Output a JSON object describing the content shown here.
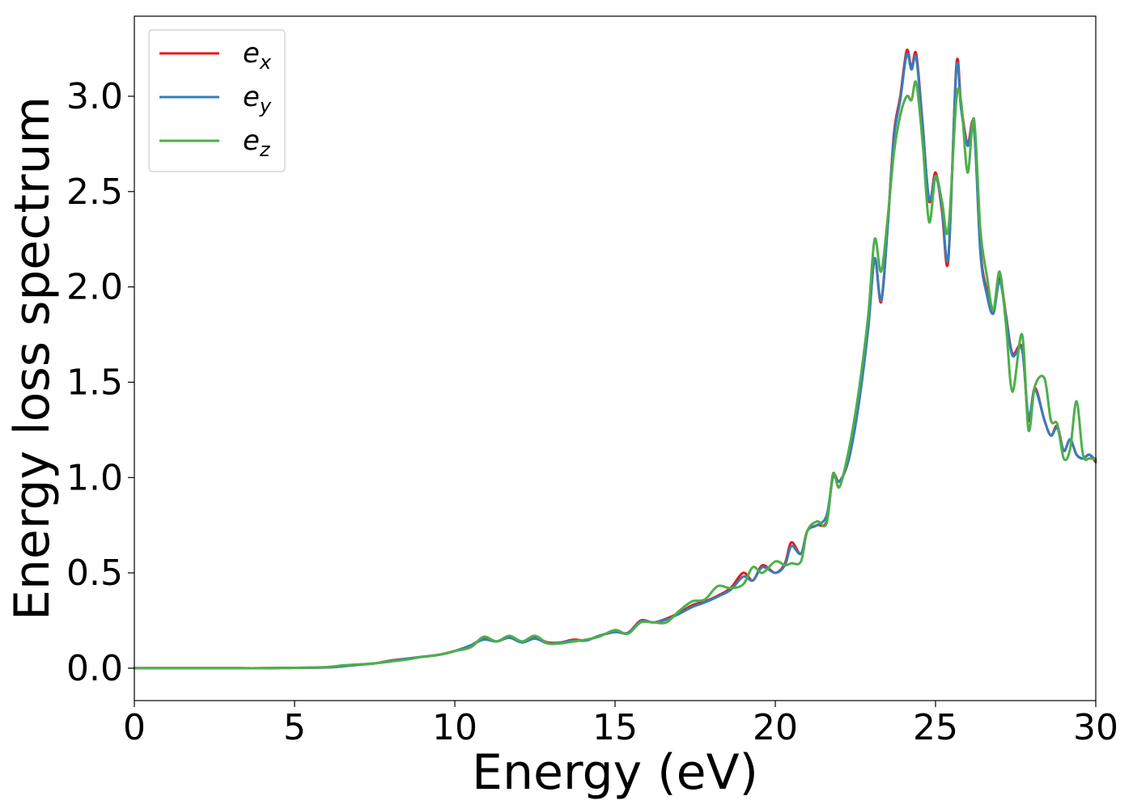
{
  "chart_data": {
    "type": "line",
    "title": "",
    "xlabel": "Energy (eV)",
    "ylabel": "Energy loss spectrum",
    "xlim": [
      0,
      30
    ],
    "ylim": [
      -0.17,
      3.42
    ],
    "xticks": [
      0,
      5,
      10,
      15,
      20,
      25,
      30
    ],
    "xtick_labels": [
      "0",
      "5",
      "10",
      "15",
      "20",
      "25",
      "30"
    ],
    "yticks": [
      0.0,
      0.5,
      1.0,
      1.5,
      2.0,
      2.5,
      3.0
    ],
    "ytick_labels": [
      "0.0",
      "0.5",
      "1.0",
      "1.5",
      "2.0",
      "2.5",
      "3.0"
    ],
    "grid": false,
    "legend_position": "top-left",
    "series": [
      {
        "name": "e",
        "subscript": "x",
        "color": "#e41a1c",
        "x": [
          0,
          1,
          2,
          3,
          4,
          5,
          6,
          6.5,
          7,
          7.5,
          8,
          8.5,
          9,
          9.5,
          10,
          10.5,
          10.9,
          11.3,
          11.7,
          12.1,
          12.5,
          12.9,
          13.3,
          13.7,
          14.1,
          14.5,
          15,
          15.4,
          15.8,
          16.2,
          16.6,
          17,
          17.4,
          17.8,
          18.2,
          18.6,
          19,
          19.3,
          19.6,
          20,
          20.3,
          20.5,
          20.8,
          21,
          21.3,
          21.6,
          21.8,
          22,
          22.3,
          22.6,
          22.9,
          23.1,
          23.3,
          23.5,
          23.7,
          23.9,
          24.1,
          24.25,
          24.4,
          24.6,
          24.8,
          25,
          25.2,
          25.4,
          25.65,
          25.8,
          26,
          26.2,
          26.4,
          26.6,
          26.8,
          27,
          27.2,
          27.4,
          27.7,
          27.9,
          28.1,
          28.4,
          28.6,
          28.8,
          29,
          29.2,
          29.4,
          29.6,
          29.8,
          30
        ],
        "y": [
          0,
          0,
          0,
          0,
          0,
          0.002,
          0.004,
          0.01,
          0.018,
          0.025,
          0.04,
          0.05,
          0.06,
          0.07,
          0.09,
          0.12,
          0.155,
          0.14,
          0.16,
          0.135,
          0.16,
          0.135,
          0.135,
          0.15,
          0.145,
          0.17,
          0.19,
          0.185,
          0.25,
          0.24,
          0.26,
          0.29,
          0.33,
          0.35,
          0.38,
          0.42,
          0.5,
          0.46,
          0.54,
          0.5,
          0.55,
          0.66,
          0.6,
          0.72,
          0.75,
          0.77,
          1.01,
          0.98,
          1.1,
          1.4,
          1.8,
          2.15,
          1.92,
          2.3,
          2.8,
          3.0,
          3.24,
          3.15,
          3.22,
          2.85,
          2.45,
          2.6,
          2.4,
          2.14,
          3.16,
          2.95,
          2.75,
          2.85,
          2.2,
          1.98,
          1.86,
          2.05,
          1.85,
          1.65,
          1.68,
          1.3,
          1.47,
          1.3,
          1.22,
          1.27,
          1.14,
          1.2,
          1.12,
          1.1,
          1.12,
          1.08
        ]
      },
      {
        "name": "e",
        "subscript": "y",
        "color": "#377eb8",
        "x": [
          0,
          1,
          2,
          3,
          4,
          5,
          6,
          6.5,
          7,
          7.5,
          8,
          8.5,
          9,
          9.5,
          10,
          10.5,
          10.9,
          11.3,
          11.7,
          12.1,
          12.5,
          12.9,
          13.3,
          13.7,
          14.1,
          14.5,
          15,
          15.4,
          15.8,
          16.2,
          16.6,
          17,
          17.4,
          17.8,
          18.2,
          18.6,
          19,
          19.3,
          19.6,
          20,
          20.3,
          20.5,
          20.8,
          21,
          21.3,
          21.6,
          21.8,
          22,
          22.3,
          22.6,
          22.9,
          23.1,
          23.3,
          23.5,
          23.7,
          23.9,
          24.1,
          24.25,
          24.4,
          24.6,
          24.8,
          25,
          25.2,
          25.4,
          25.65,
          25.8,
          26,
          26.2,
          26.4,
          26.6,
          26.8,
          27,
          27.2,
          27.4,
          27.7,
          27.9,
          28.1,
          28.4,
          28.6,
          28.8,
          29,
          29.2,
          29.4,
          29.6,
          29.8,
          30
        ],
        "y": [
          0,
          0,
          0,
          0,
          0,
          0.002,
          0.004,
          0.01,
          0.018,
          0.025,
          0.038,
          0.05,
          0.06,
          0.07,
          0.09,
          0.12,
          0.15,
          0.14,
          0.16,
          0.135,
          0.155,
          0.13,
          0.135,
          0.145,
          0.145,
          0.17,
          0.19,
          0.185,
          0.245,
          0.24,
          0.255,
          0.285,
          0.32,
          0.345,
          0.375,
          0.41,
          0.48,
          0.46,
          0.53,
          0.5,
          0.54,
          0.64,
          0.6,
          0.72,
          0.75,
          0.8,
          1.0,
          0.98,
          1.1,
          1.38,
          1.78,
          2.15,
          1.93,
          2.3,
          2.78,
          2.98,
          3.22,
          3.14,
          3.2,
          2.84,
          2.46,
          2.58,
          2.42,
          2.16,
          3.14,
          2.93,
          2.74,
          2.83,
          2.18,
          1.96,
          1.86,
          2.03,
          1.84,
          1.64,
          1.67,
          1.32,
          1.46,
          1.3,
          1.22,
          1.26,
          1.14,
          1.2,
          1.12,
          1.1,
          1.12,
          1.09
        ]
      },
      {
        "name": "e",
        "subscript": "z",
        "color": "#4daf4a",
        "x": [
          0,
          1,
          2,
          3,
          4,
          5,
          6,
          6.5,
          7,
          7.5,
          8,
          8.5,
          9,
          9.5,
          10,
          10.5,
          10.9,
          11.3,
          11.7,
          12.1,
          12.5,
          12.9,
          13.3,
          13.7,
          14.1,
          14.5,
          15,
          15.4,
          15.8,
          16.2,
          16.6,
          17,
          17.4,
          17.8,
          18.2,
          18.6,
          19,
          19.3,
          19.6,
          20,
          20.3,
          20.5,
          20.8,
          21,
          21.3,
          21.6,
          21.8,
          22,
          22.3,
          22.6,
          22.9,
          23.1,
          23.3,
          23.5,
          23.7,
          23.9,
          24.1,
          24.25,
          24.4,
          24.6,
          24.8,
          25,
          25.2,
          25.4,
          25.65,
          25.8,
          26,
          26.2,
          26.4,
          26.6,
          26.8,
          27,
          27.2,
          27.4,
          27.7,
          27.9,
          28.1,
          28.4,
          28.6,
          28.8,
          29,
          29.2,
          29.4,
          29.6,
          29.8,
          30
        ],
        "y": [
          0,
          0,
          0,
          0,
          0,
          0.002,
          0.006,
          0.015,
          0.02,
          0.025,
          0.035,
          0.045,
          0.06,
          0.07,
          0.09,
          0.11,
          0.165,
          0.14,
          0.17,
          0.14,
          0.17,
          0.13,
          0.13,
          0.14,
          0.15,
          0.165,
          0.2,
          0.18,
          0.24,
          0.24,
          0.24,
          0.3,
          0.35,
          0.36,
          0.43,
          0.42,
          0.44,
          0.53,
          0.5,
          0.56,
          0.54,
          0.55,
          0.56,
          0.72,
          0.77,
          0.76,
          1.02,
          0.95,
          1.15,
          1.45,
          1.85,
          2.25,
          2.08,
          2.35,
          2.7,
          2.9,
          3.0,
          2.98,
          3.07,
          2.75,
          2.34,
          2.58,
          2.45,
          2.3,
          2.98,
          2.97,
          2.6,
          2.88,
          2.3,
          2.06,
          1.88,
          2.08,
          1.8,
          1.45,
          1.75,
          1.25,
          1.48,
          1.52,
          1.3,
          1.28,
          1.1,
          1.15,
          1.4,
          1.12,
          1.1,
          1.1
        ]
      }
    ]
  }
}
